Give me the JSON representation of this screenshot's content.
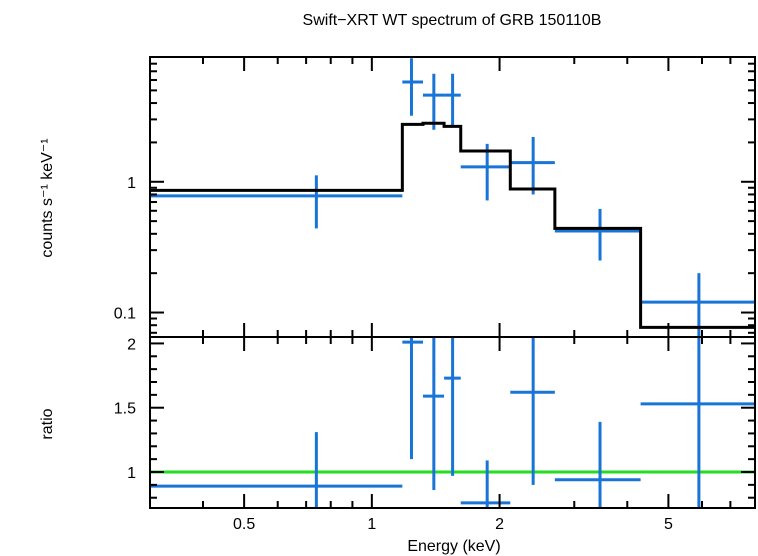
{
  "chart_data": [
    {
      "type": "line",
      "title": "Swift−XRT WT spectrum of GRB 150110B",
      "ylabel": "counts s⁻¹ keV⁻¹",
      "x_scale": "log",
      "y_scale": "log",
      "xlim": [
        0.3,
        8.0
      ],
      "ylim": [
        0.065,
        9.0
      ],
      "y_ticks": [
        {
          "value": 0.1,
          "label": "0.1"
        },
        {
          "value": 1,
          "label": "1"
        }
      ],
      "grid": false,
      "series": [
        {
          "kind": "data",
          "color": "#1874d6",
          "points": [
            {
              "x": 0.74,
              "xlo": 0.3,
              "xhi": 1.18,
              "y": 0.78,
              "ylo": 0.44,
              "yhi": 1.12
            },
            {
              "x": 1.24,
              "xlo": 1.18,
              "xhi": 1.32,
              "y": 5.8,
              "ylo": 3.2,
              "yhi": 8.8
            },
            {
              "x": 1.4,
              "xlo": 1.32,
              "xhi": 1.48,
              "y": 4.6,
              "ylo": 2.5,
              "yhi": 6.7
            },
            {
              "x": 1.55,
              "xlo": 1.48,
              "xhi": 1.62,
              "y": 4.6,
              "ylo": 2.6,
              "yhi": 6.7
            },
            {
              "x": 1.87,
              "xlo": 1.62,
              "xhi": 2.12,
              "y": 1.3,
              "ylo": 0.72,
              "yhi": 1.95
            },
            {
              "x": 2.4,
              "xlo": 2.12,
              "xhi": 2.7,
              "y": 1.4,
              "ylo": 0.8,
              "yhi": 2.2
            },
            {
              "x": 3.45,
              "xlo": 2.7,
              "xhi": 4.3,
              "y": 0.42,
              "ylo": 0.25,
              "yhi": 0.62
            },
            {
              "x": 5.9,
              "xlo": 4.3,
              "xhi": 8.0,
              "y": 0.12,
              "ylo": 0.065,
              "yhi": 0.2
            }
          ]
        },
        {
          "kind": "model",
          "color": "#000000",
          "steps": [
            {
              "x0": 0.3,
              "x1": 1.18,
              "y": 0.86
            },
            {
              "x0": 1.18,
              "x1": 1.32,
              "y": 2.75
            },
            {
              "x0": 1.32,
              "x1": 1.48,
              "y": 2.8
            },
            {
              "x0": 1.48,
              "x1": 1.62,
              "y": 2.65
            },
            {
              "x0": 1.62,
              "x1": 2.12,
              "y": 1.72
            },
            {
              "x0": 2.12,
              "x1": 2.7,
              "y": 0.88
            },
            {
              "x0": 2.7,
              "x1": 4.3,
              "y": 0.44
            },
            {
              "x0": 4.3,
              "x1": 8.0,
              "y": 0.077
            }
          ]
        }
      ]
    },
    {
      "type": "line",
      "xlabel": "Energy (keV)",
      "ylabel": "ratio",
      "x_scale": "log",
      "xlim": [
        0.3,
        8.0
      ],
      "ylim": [
        0.72,
        2.05
      ],
      "x_ticks": [
        {
          "value": 0.5,
          "label": "0.5"
        },
        {
          "value": 1,
          "label": "1"
        },
        {
          "value": 2,
          "label": "2"
        },
        {
          "value": 5,
          "label": "5"
        }
      ],
      "y_ticks": [
        {
          "value": 1,
          "label": "1"
        },
        {
          "value": 1.5,
          "label": "1.5"
        },
        {
          "value": 2,
          "label": "2"
        }
      ],
      "grid": false,
      "reference_line": {
        "y": 1,
        "color": "#22dd22"
      },
      "series": [
        {
          "kind": "data",
          "color": "#1874d6",
          "points": [
            {
              "x": 0.74,
              "xlo": 0.3,
              "xhi": 1.18,
              "y": 0.89,
              "ylo": 0.72,
              "yhi": 1.31
            },
            {
              "x": 1.24,
              "xlo": 1.18,
              "xhi": 1.32,
              "y": 2.01,
              "ylo": 1.1,
              "yhi": 2.05
            },
            {
              "x": 1.4,
              "xlo": 1.32,
              "xhi": 1.48,
              "y": 1.59,
              "ylo": 0.86,
              "yhi": 2.05
            },
            {
              "x": 1.55,
              "xlo": 1.48,
              "xhi": 1.62,
              "y": 1.73,
              "ylo": 0.97,
              "yhi": 2.05
            },
            {
              "x": 1.87,
              "xlo": 1.62,
              "xhi": 2.12,
              "y": 0.76,
              "ylo": 0.72,
              "yhi": 1.09
            },
            {
              "x": 2.4,
              "xlo": 2.12,
              "xhi": 2.7,
              "y": 1.62,
              "ylo": 0.9,
              "yhi": 2.05
            },
            {
              "x": 3.45,
              "xlo": 2.7,
              "xhi": 4.3,
              "y": 0.94,
              "ylo": 0.72,
              "yhi": 1.39
            },
            {
              "x": 5.9,
              "xlo": 4.3,
              "xhi": 8.0,
              "y": 1.53,
              "ylo": 0.72,
              "yhi": 2.05
            }
          ]
        }
      ]
    }
  ]
}
